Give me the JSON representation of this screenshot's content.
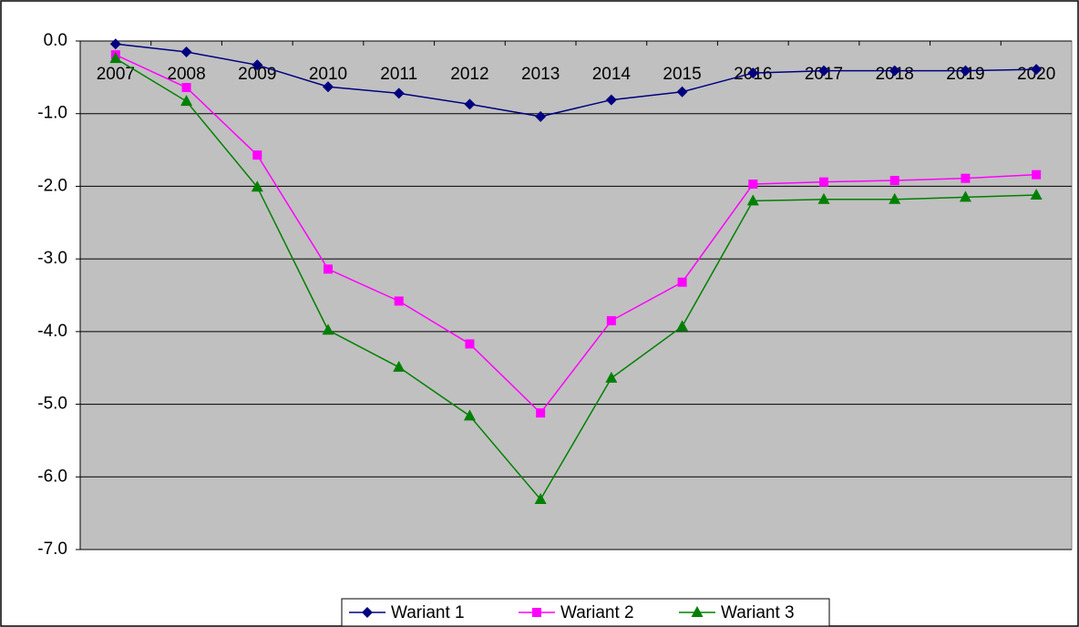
{
  "chart_data": {
    "type": "line",
    "categories": [
      "2007",
      "2008",
      "2009",
      "2010",
      "2011",
      "2012",
      "2013",
      "2014",
      "2015",
      "2016",
      "2017",
      "2018",
      "2019",
      "2020"
    ],
    "series": [
      {
        "name": "Wariant 1",
        "color": "#000080",
        "marker": "diamond",
        "values": [
          -0.04,
          -0.15,
          -0.33,
          -0.63,
          -0.72,
          -0.87,
          -1.04,
          -0.81,
          -0.7,
          -0.44,
          -0.41,
          -0.41,
          -0.41,
          -0.39
        ]
      },
      {
        "name": "Wariant 2",
        "color": "#ff00ff",
        "marker": "square",
        "values": [
          -0.19,
          -0.64,
          -1.57,
          -3.14,
          -3.58,
          -4.17,
          -5.12,
          -3.85,
          -3.32,
          -1.97,
          -1.94,
          -1.92,
          -1.89,
          -1.84
        ]
      },
      {
        "name": "Wariant 3",
        "color": "#008000",
        "marker": "triangle",
        "values": [
          -0.24,
          -0.83,
          -2.01,
          -3.98,
          -4.49,
          -5.16,
          -6.31,
          -4.64,
          -3.93,
          -2.2,
          -2.18,
          -2.18,
          -2.15,
          -2.12
        ]
      }
    ],
    "ylim": [
      -7,
      0
    ],
    "yticks": [
      {
        "value": 0,
        "label": "0.0"
      },
      {
        "value": -1,
        "label": "-1.0"
      },
      {
        "value": -2,
        "label": "-2.0"
      },
      {
        "value": -3,
        "label": "-3.0"
      },
      {
        "value": -4,
        "label": "-4.0"
      },
      {
        "value": -5,
        "label": "-5.0"
      },
      {
        "value": -6,
        "label": "-6.0"
      },
      {
        "value": -7,
        "label": "-7.0"
      }
    ],
    "grid": true,
    "plot_background": "#c0c0c0",
    "legend": "bottom"
  }
}
